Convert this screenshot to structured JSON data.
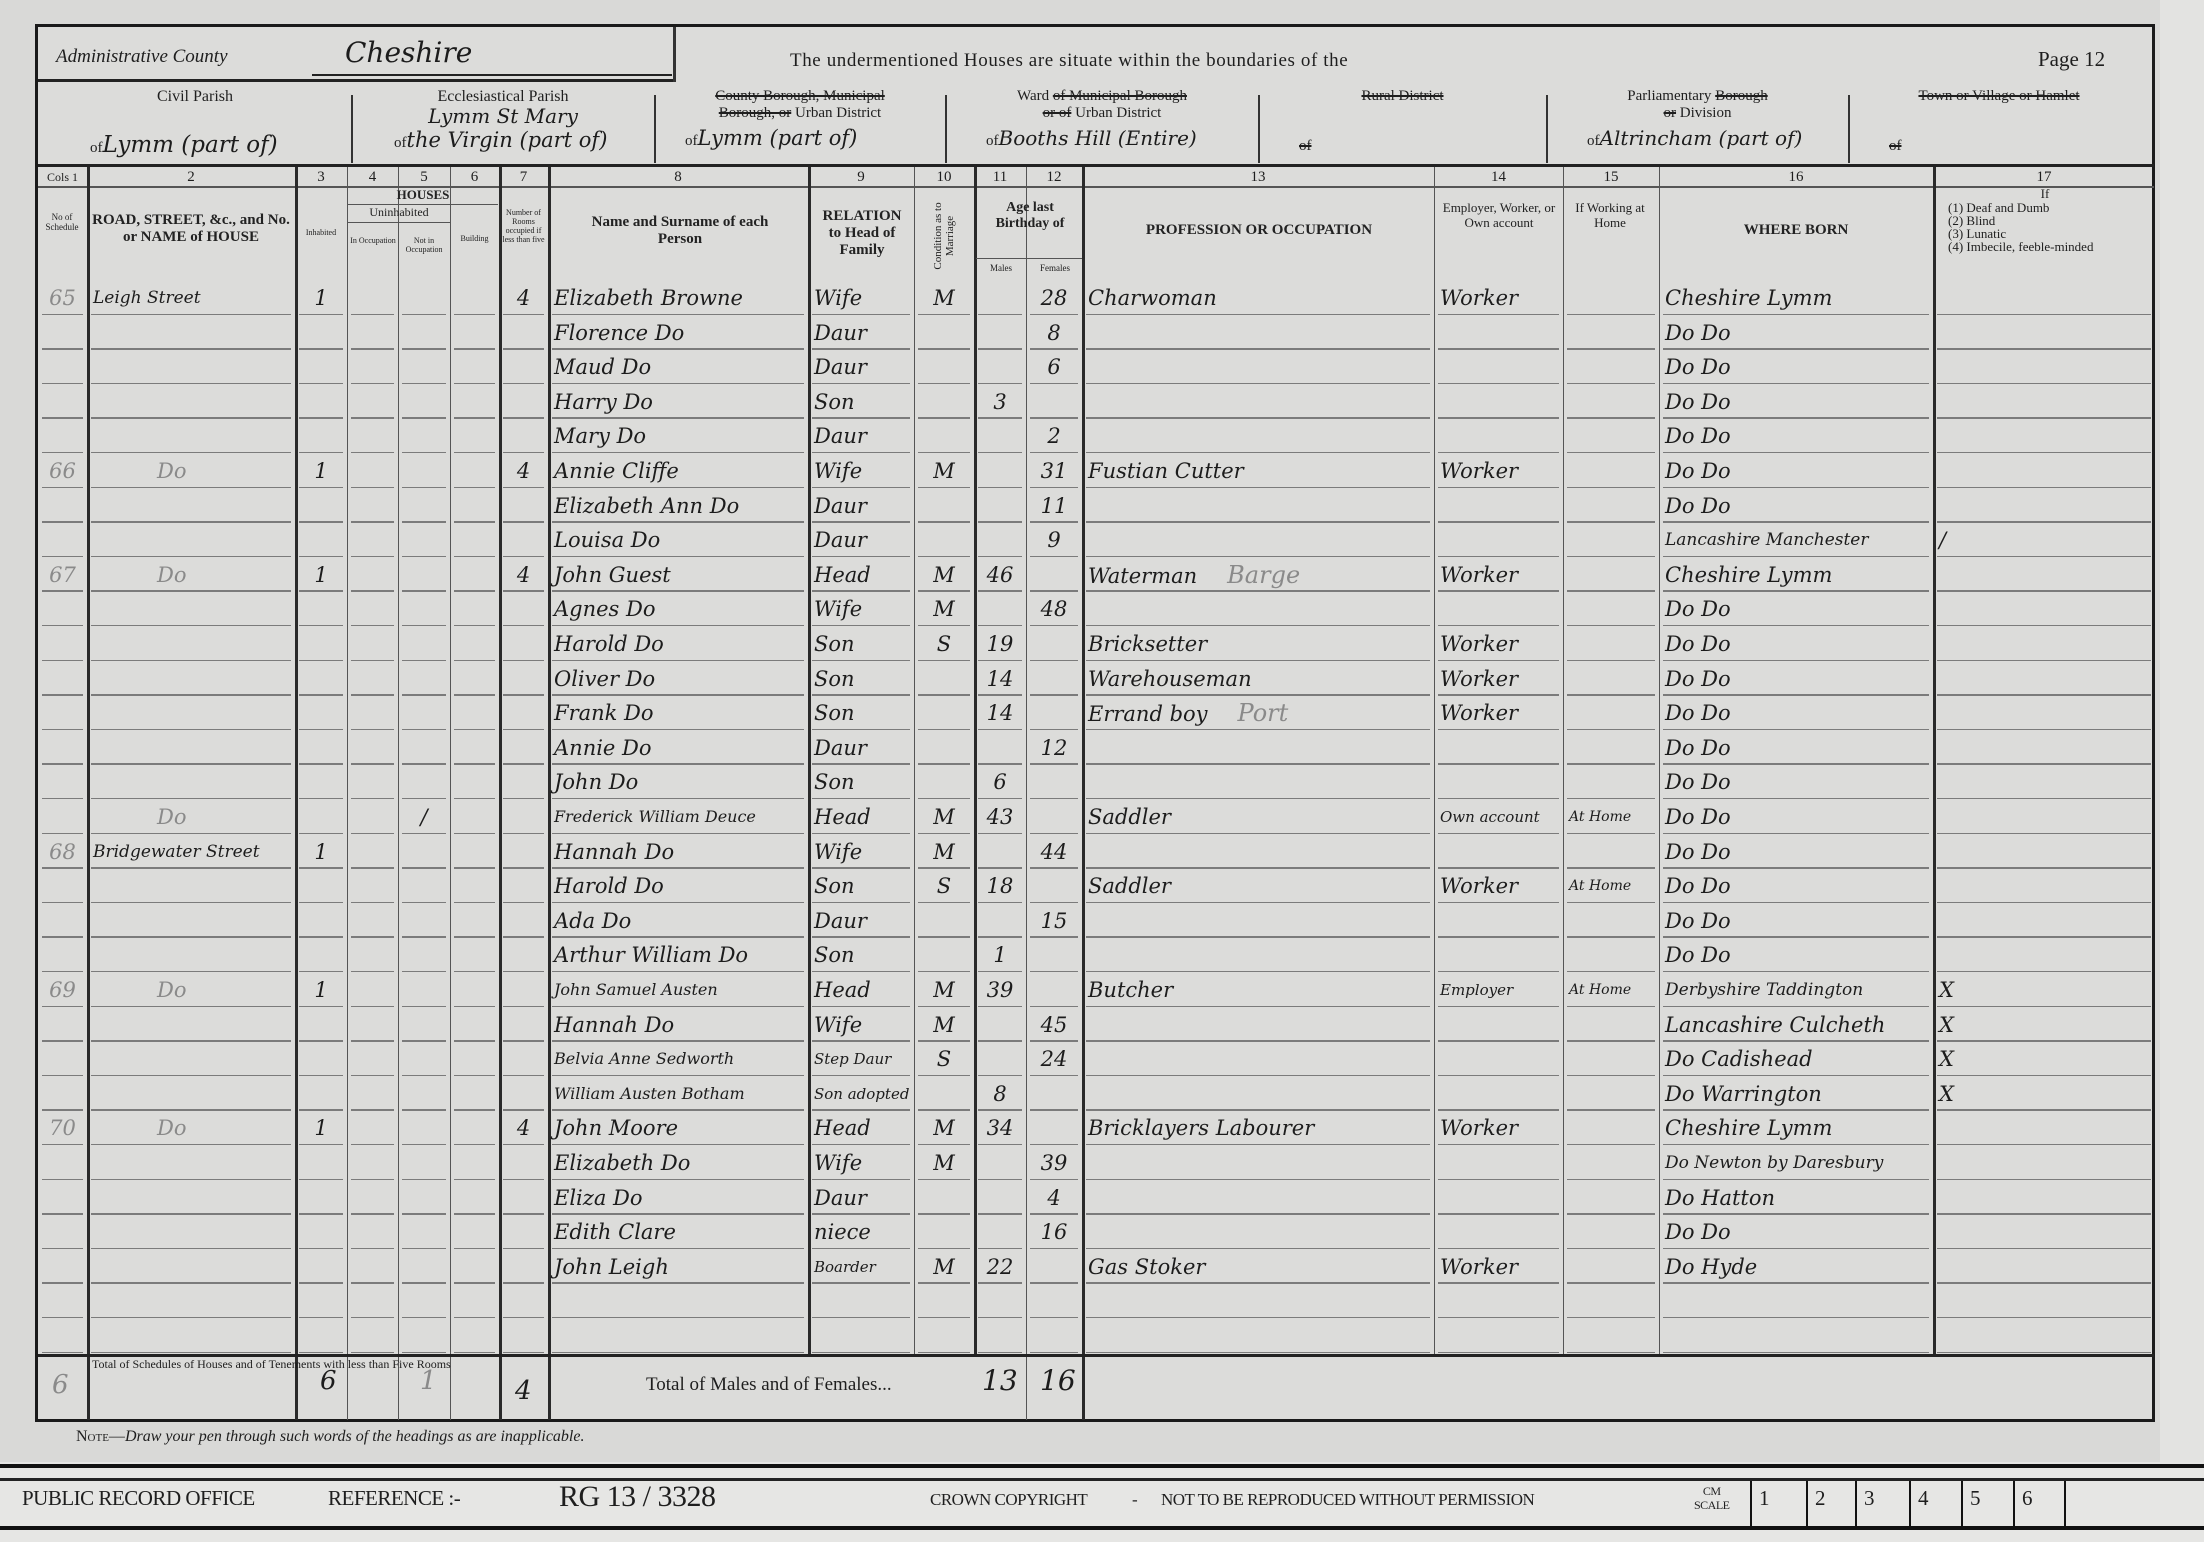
{
  "header": {
    "county_label": "Administrative County",
    "county_value": "Cheshire",
    "boundaries_text": "The undermentioned Houses are situate within the boundaries of the",
    "page_label": "Page 12"
  },
  "divisions": {
    "civil_parish": {
      "label": "Civil Parish",
      "of": "of",
      "value": "Lymm (part of)"
    },
    "ecclesiastical_parish": {
      "label": "Ecclesiastical Parish",
      "of": "of",
      "value_line1": "Lymm St Mary",
      "value_line2": "the Virgin (part of)"
    },
    "urban_district": {
      "label_struck1": "County Borough, Municipal",
      "label_struck2": "Borough, or",
      "label": "Urban District",
      "of": "of",
      "value": "Lymm (part of)"
    },
    "ward": {
      "label": "Ward",
      "label_struck1": "of Municipal Borough",
      "label_struck2": "or of",
      "label2": "Urban District",
      "of": "of",
      "value": "Booths Hill (Entire)"
    },
    "rural_district": {
      "label_struck": "Rural District",
      "of": "of",
      "value": ""
    },
    "parliamentary": {
      "label": "Parliamentary",
      "label_struck1": "Borough",
      "label_struck2": "or",
      "label2": "Division",
      "of": "of",
      "value": "Altrincham (part of)"
    },
    "town": {
      "label_struck": "Town or Village or Hamlet",
      "of": "of",
      "value": ""
    }
  },
  "columns": {
    "numbers": [
      "Cols 1",
      "2",
      "3",
      "4",
      "5",
      "6",
      "7",
      "8",
      "9",
      "10",
      "11",
      "12",
      "13",
      "14",
      "15",
      "16",
      "17"
    ],
    "schedule": "No of Schedule",
    "road": "ROAD, STREET, &c., and No. or NAME of HOUSE",
    "houses": "HOUSES",
    "inhabited": "Inhabited",
    "uninhabited": "Uninhabited",
    "in_occupation": "In Occupation",
    "not_in_occupation": "Not in Occupation",
    "building": "Building",
    "rooms": "Number of Rooms occupied if less than five",
    "name": "Name and Surname of each Person",
    "relation": "RELATION to Head of Family",
    "condition": "Condition as to Marriage",
    "age": "Age last Birthday of",
    "males": "Males",
    "females": "Females",
    "occupation": "PROFESSION OR OCCUPATION",
    "employment": "Employer, Worker, or Own account",
    "at_home": "If Working at Home",
    "where_born": "WHERE BORN",
    "infirmity_if": "If",
    "infirmity_list": [
      "(1) Deaf and Dumb",
      "(2) Blind",
      "(3) Lunatic",
      "(4) Imbecile, feeble-minded"
    ]
  },
  "rows": [
    {
      "schedule": "65",
      "address": "Leigh Street",
      "inhabited": "1",
      "rooms": "4",
      "name": "Elizabeth Browne",
      "relation": "Wife",
      "condition": "M",
      "age_m": "",
      "age_f": "28",
      "occupation": "Charwoman",
      "employment": "Worker",
      "at_home": "",
      "born": "Cheshire Lymm",
      "infirmity": ""
    },
    {
      "name": "Florence Do",
      "relation": "Daur",
      "age_f": "8",
      "born": "Do Do"
    },
    {
      "name": "Maud Do",
      "relation": "Daur",
      "age_f": "6",
      "born": "Do Do"
    },
    {
      "name": "Harry Do",
      "relation": "Son",
      "age_m": "3",
      "born": "Do Do"
    },
    {
      "name": "Mary Do",
      "relation": "Daur",
      "age_f": "2",
      "born": "Do Do"
    },
    {
      "schedule": "66",
      "address": "Do",
      "inhabited": "1",
      "rooms": "4",
      "name": "Annie Cliffe",
      "relation": "Wife",
      "condition": "M",
      "age_f": "31",
      "occupation": "Fustian Cutter",
      "employment": "Worker",
      "born": "Do Do"
    },
    {
      "name": "Elizabeth Ann Do",
      "relation": "Daur",
      "age_f": "11",
      "born": "Do Do"
    },
    {
      "name": "Louisa Do",
      "relation": "Daur",
      "age_f": "9",
      "born": "Lancashire Manchester",
      "infirmity": "/"
    },
    {
      "schedule": "67",
      "address": "Do",
      "inhabited": "1",
      "rooms": "4",
      "name": "John Guest",
      "relation": "Head",
      "condition": "M",
      "age_m": "46",
      "occupation": "Waterman",
      "occupation_note": "Barge",
      "employment": "Worker",
      "born": "Cheshire Lymm"
    },
    {
      "name": "Agnes Do",
      "relation": "Wife",
      "condition": "M",
      "age_f": "48",
      "born": "Do Do"
    },
    {
      "name": "Harold Do",
      "relation": "Son",
      "condition": "S",
      "age_m": "19",
      "occupation": "Bricksetter",
      "employment": "Worker",
      "born": "Do Do"
    },
    {
      "name": "Oliver Do",
      "relation": "Son",
      "age_m": "14",
      "occupation": "Warehouseman",
      "employment": "Worker",
      "born": "Do Do"
    },
    {
      "name": "Frank Do",
      "relation": "Son",
      "age_m": "14",
      "occupation": "Errand boy",
      "occupation_note": "Port",
      "employment": "Worker",
      "born": "Do Do"
    },
    {
      "name": "Annie Do",
      "relation": "Daur",
      "age_f": "12",
      "born": "Do Do"
    },
    {
      "name": "John Do",
      "relation": "Son",
      "age_m": "6",
      "born": "Do Do"
    },
    {
      "address": "Do",
      "not_in_occupation": "/",
      "name": "Frederick William Deuce",
      "relation": "Head",
      "condition": "M",
      "age_m": "43",
      "occupation": "Saddler",
      "employment": "Own account",
      "at_home": "At Home",
      "born": "Do Do"
    },
    {
      "schedule": "68",
      "address": "Bridgewater Street",
      "inhabited": "1",
      "name": "Hannah Do",
      "relation": "Wife",
      "condition": "M",
      "age_f": "44",
      "born": "Do Do"
    },
    {
      "name": "Harold Do",
      "relation": "Son",
      "condition": "S",
      "age_m": "18",
      "occupation": "Saddler",
      "employment": "Worker",
      "at_home": "At Home",
      "born": "Do Do"
    },
    {
      "name": "Ada Do",
      "relation": "Daur",
      "age_f": "15",
      "born": "Do Do"
    },
    {
      "name": "Arthur William Do",
      "relation": "Son",
      "age_m": "1",
      "born": "Do Do"
    },
    {
      "schedule": "69",
      "address": "Do",
      "inhabited": "1",
      "name": "John Samuel Austen",
      "relation": "Head",
      "condition": "M",
      "age_m": "39",
      "occupation": "Butcher",
      "employment": "Employer",
      "at_home": "At Home",
      "born": "Derbyshire Taddington",
      "infirmity": "X"
    },
    {
      "name": "Hannah Do",
      "relation": "Wife",
      "condition": "M",
      "age_f": "45",
      "born": "Lancashire Culcheth",
      "infirmity": "X"
    },
    {
      "name": "Belvia Anne Sedworth",
      "relation": "Step Daur",
      "condition": "S",
      "age_f": "24",
      "born": "Do Cadishead",
      "infirmity": "X"
    },
    {
      "name": "William Austen Botham",
      "relation": "Son adopted",
      "age_m": "8",
      "born": "Do Warrington",
      "infirmity": "X"
    },
    {
      "schedule": "70",
      "address": "Do",
      "inhabited": "1",
      "rooms": "4",
      "name": "John Moore",
      "relation": "Head",
      "condition": "M",
      "age_m": "34",
      "occupation": "Bricklayers Labourer",
      "employment": "Worker",
      "born": "Cheshire Lymm"
    },
    {
      "name": "Elizabeth Do",
      "relation": "Wife",
      "condition": "M",
      "age_f": "39",
      "born": "Do Newton by Daresbury"
    },
    {
      "name": "Eliza Do",
      "relation": "Daur",
      "age_f": "4",
      "born": "Do Hatton"
    },
    {
      "name": "Edith Clare",
      "relation": "niece",
      "age_f": "16",
      "born": "Do Do"
    },
    {
      "name": "John Leigh",
      "relation": "Boarder",
      "condition": "M",
      "age_m": "22",
      "occupation": "Gas Stoker",
      "employment": "Worker",
      "born": "Do Hyde"
    },
    {},
    {}
  ],
  "totals": {
    "schedules_label": "Total of Schedules of Houses and of Tenements with less than Five Rooms",
    "schedules_count": "6",
    "inhabited": "6",
    "not_in_occupation": "1",
    "rooms": "4",
    "males_females_label": "Total of Males and of Females...",
    "males": "13",
    "females": "16"
  },
  "note": {
    "prefix": "Note—",
    "text": "Draw your pen through such words of the headings as are inapplicable."
  },
  "footer": {
    "office": "PUBLIC RECORD OFFICE",
    "reference_label": "REFERENCE :-",
    "reference": "RG 13 / 3328",
    "copyright": "CROWN COPYRIGHT",
    "separator": "-",
    "restriction": "NOT TO BE REPRODUCED WITHOUT PERMISSION",
    "scale_label_1": "CM",
    "scale_label_2": "SCALE",
    "scale": [
      "1",
      "2",
      "3",
      "4",
      "5",
      "6"
    ]
  }
}
